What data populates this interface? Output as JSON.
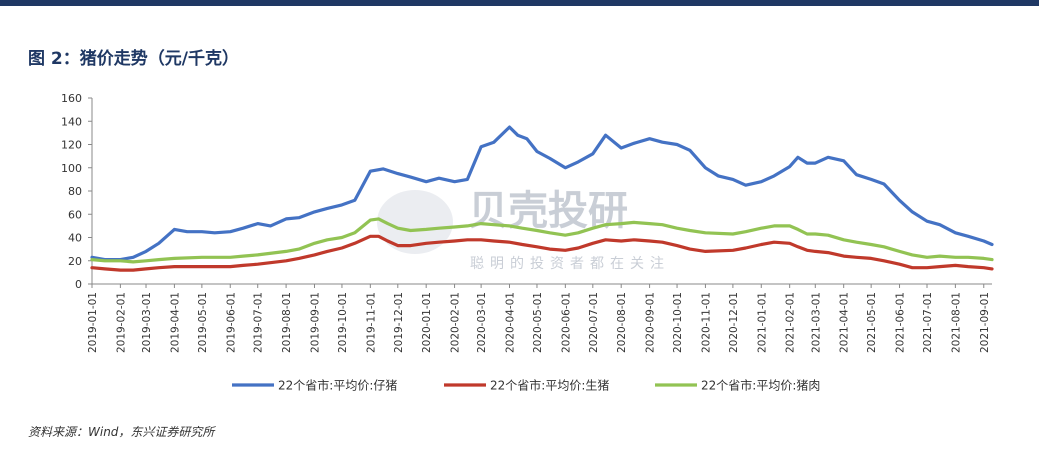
{
  "figure": {
    "title": "图 2：猪价走势（元/千克）",
    "source": "资料来源：Wind，东兴证券研究所"
  },
  "watermark": {
    "main": "贝壳投研",
    "sub": "聪明的投资者都在关注"
  },
  "colors": {
    "header_bar": "#1f3864",
    "title": "#1f3864",
    "axis": "#888888"
  },
  "chart_data": {
    "type": "line",
    "ylim": [
      0,
      160
    ],
    "yticks": [
      0,
      20,
      40,
      60,
      80,
      100,
      120,
      140,
      160
    ],
    "xlim": [
      "2019-01-01",
      "2021-09-10"
    ],
    "xticks": [
      "2019-01-01",
      "2019-02-01",
      "2019-03-01",
      "2019-04-01",
      "2019-05-01",
      "2019-06-01",
      "2019-07-01",
      "2019-08-01",
      "2019-09-01",
      "2019-10-01",
      "2019-11-01",
      "2019-12-01",
      "2020-01-01",
      "2020-02-01",
      "2020-03-01",
      "2020-04-01",
      "2020-05-01",
      "2020-06-01",
      "2020-07-01",
      "2020-08-01",
      "2020-09-01",
      "2020-10-01",
      "2020-11-01",
      "2020-12-01",
      "2021-01-01",
      "2021-02-01",
      "2021-03-01",
      "2021-04-01",
      "2021-05-01",
      "2021-06-01",
      "2021-07-01",
      "2021-08-01",
      "2021-09-01"
    ],
    "grid": false,
    "legend_position": "bottom",
    "series": [
      {
        "name": "22个省市:平均价:仔猪",
        "color": "#4472c4",
        "points": [
          [
            "2019-01-01",
            23
          ],
          [
            "2019-01-15",
            21
          ],
          [
            "2019-02-01",
            21
          ],
          [
            "2019-02-15",
            23
          ],
          [
            "2019-03-01",
            28
          ],
          [
            "2019-03-15",
            35
          ],
          [
            "2019-04-01",
            47
          ],
          [
            "2019-04-15",
            45
          ],
          [
            "2019-05-01",
            45
          ],
          [
            "2019-05-15",
            44
          ],
          [
            "2019-06-01",
            45
          ],
          [
            "2019-06-15",
            48
          ],
          [
            "2019-07-01",
            52
          ],
          [
            "2019-07-15",
            50
          ],
          [
            "2019-08-01",
            56
          ],
          [
            "2019-08-15",
            57
          ],
          [
            "2019-09-01",
            62
          ],
          [
            "2019-09-15",
            65
          ],
          [
            "2019-10-01",
            68
          ],
          [
            "2019-10-15",
            72
          ],
          [
            "2019-11-01",
            97
          ],
          [
            "2019-11-15",
            99
          ],
          [
            "2019-12-01",
            95
          ],
          [
            "2019-12-15",
            92
          ],
          [
            "2020-01-01",
            88
          ],
          [
            "2020-01-15",
            91
          ],
          [
            "2020-02-01",
            88
          ],
          [
            "2020-02-15",
            90
          ],
          [
            "2020-03-01",
            118
          ],
          [
            "2020-03-15",
            122
          ],
          [
            "2020-04-01",
            135
          ],
          [
            "2020-04-10",
            128
          ],
          [
            "2020-04-20",
            125
          ],
          [
            "2020-05-01",
            114
          ],
          [
            "2020-05-15",
            108
          ],
          [
            "2020-06-01",
            100
          ],
          [
            "2020-06-15",
            105
          ],
          [
            "2020-07-01",
            112
          ],
          [
            "2020-07-15",
            128
          ],
          [
            "2020-08-01",
            117
          ],
          [
            "2020-08-15",
            121
          ],
          [
            "2020-09-01",
            125
          ],
          [
            "2020-09-15",
            122
          ],
          [
            "2020-10-01",
            120
          ],
          [
            "2020-10-15",
            115
          ],
          [
            "2020-11-01",
            100
          ],
          [
            "2020-11-15",
            93
          ],
          [
            "2020-12-01",
            90
          ],
          [
            "2020-12-15",
            85
          ],
          [
            "2021-01-01",
            88
          ],
          [
            "2021-01-15",
            93
          ],
          [
            "2021-02-01",
            101
          ],
          [
            "2021-02-10",
            109
          ],
          [
            "2021-02-20",
            104
          ],
          [
            "2021-03-01",
            104
          ],
          [
            "2021-03-15",
            109
          ],
          [
            "2021-04-01",
            106
          ],
          [
            "2021-04-15",
            94
          ],
          [
            "2021-05-01",
            90
          ],
          [
            "2021-05-15",
            86
          ],
          [
            "2021-06-01",
            72
          ],
          [
            "2021-06-15",
            62
          ],
          [
            "2021-07-01",
            54
          ],
          [
            "2021-07-15",
            51
          ],
          [
            "2021-08-01",
            44
          ],
          [
            "2021-08-15",
            41
          ],
          [
            "2021-09-01",
            37
          ],
          [
            "2021-09-10",
            34
          ]
        ]
      },
      {
        "name": "22个省市:平均价:生猪",
        "color": "#c0392b",
        "points": [
          [
            "2019-01-01",
            14
          ],
          [
            "2019-01-15",
            13
          ],
          [
            "2019-02-01",
            12
          ],
          [
            "2019-02-15",
            12
          ],
          [
            "2019-03-01",
            13
          ],
          [
            "2019-03-15",
            14
          ],
          [
            "2019-04-01",
            15
          ],
          [
            "2019-05-01",
            15
          ],
          [
            "2019-06-01",
            15
          ],
          [
            "2019-06-15",
            16
          ],
          [
            "2019-07-01",
            17
          ],
          [
            "2019-08-01",
            20
          ],
          [
            "2019-08-15",
            22
          ],
          [
            "2019-09-01",
            25
          ],
          [
            "2019-09-15",
            28
          ],
          [
            "2019-10-01",
            31
          ],
          [
            "2019-10-15",
            35
          ],
          [
            "2019-11-01",
            41
          ],
          [
            "2019-11-10",
            41
          ],
          [
            "2019-11-20",
            37
          ],
          [
            "2019-12-01",
            33
          ],
          [
            "2019-12-15",
            33
          ],
          [
            "2020-01-01",
            35
          ],
          [
            "2020-01-15",
            36
          ],
          [
            "2020-02-01",
            37
          ],
          [
            "2020-02-15",
            38
          ],
          [
            "2020-03-01",
            38
          ],
          [
            "2020-03-15",
            37
          ],
          [
            "2020-04-01",
            36
          ],
          [
            "2020-04-15",
            34
          ],
          [
            "2020-05-01",
            32
          ],
          [
            "2020-05-15",
            30
          ],
          [
            "2020-06-01",
            29
          ],
          [
            "2020-06-15",
            31
          ],
          [
            "2020-07-01",
            35
          ],
          [
            "2020-07-15",
            38
          ],
          [
            "2020-08-01",
            37
          ],
          [
            "2020-08-15",
            38
          ],
          [
            "2020-09-01",
            37
          ],
          [
            "2020-09-15",
            36
          ],
          [
            "2020-10-01",
            33
          ],
          [
            "2020-10-15",
            30
          ],
          [
            "2020-11-01",
            28
          ],
          [
            "2020-12-01",
            29
          ],
          [
            "2020-12-15",
            31
          ],
          [
            "2021-01-01",
            34
          ],
          [
            "2021-01-15",
            36
          ],
          [
            "2021-02-01",
            35
          ],
          [
            "2021-02-10",
            32
          ],
          [
            "2021-02-20",
            29
          ],
          [
            "2021-03-01",
            28
          ],
          [
            "2021-03-15",
            27
          ],
          [
            "2021-04-01",
            24
          ],
          [
            "2021-04-15",
            23
          ],
          [
            "2021-05-01",
            22
          ],
          [
            "2021-05-15",
            20
          ],
          [
            "2021-06-01",
            17
          ],
          [
            "2021-06-15",
            14
          ],
          [
            "2021-07-01",
            14
          ],
          [
            "2021-07-15",
            15
          ],
          [
            "2021-08-01",
            16
          ],
          [
            "2021-08-15",
            15
          ],
          [
            "2021-09-01",
            14
          ],
          [
            "2021-09-10",
            13
          ]
        ]
      },
      {
        "name": "22个省市:平均价:猪肉",
        "color": "#92c353",
        "points": [
          [
            "2019-01-01",
            21
          ],
          [
            "2019-01-15",
            20
          ],
          [
            "2019-02-01",
            20
          ],
          [
            "2019-02-15",
            19
          ],
          [
            "2019-03-01",
            20
          ],
          [
            "2019-03-15",
            21
          ],
          [
            "2019-04-01",
            22
          ],
          [
            "2019-05-01",
            23
          ],
          [
            "2019-06-01",
            23
          ],
          [
            "2019-06-15",
            24
          ],
          [
            "2019-07-01",
            25
          ],
          [
            "2019-08-01",
            28
          ],
          [
            "2019-08-15",
            30
          ],
          [
            "2019-09-01",
            35
          ],
          [
            "2019-09-15",
            38
          ],
          [
            "2019-10-01",
            40
          ],
          [
            "2019-10-15",
            44
          ],
          [
            "2019-11-01",
            55
          ],
          [
            "2019-11-10",
            56
          ],
          [
            "2019-11-20",
            52
          ],
          [
            "2019-12-01",
            48
          ],
          [
            "2019-12-15",
            46
          ],
          [
            "2020-01-01",
            47
          ],
          [
            "2020-01-15",
            48
          ],
          [
            "2020-02-01",
            49
          ],
          [
            "2020-02-15",
            50
          ],
          [
            "2020-03-01",
            52
          ],
          [
            "2020-03-15",
            51
          ],
          [
            "2020-04-01",
            50
          ],
          [
            "2020-04-15",
            48
          ],
          [
            "2020-05-01",
            46
          ],
          [
            "2020-05-15",
            44
          ],
          [
            "2020-06-01",
            42
          ],
          [
            "2020-06-15",
            44
          ],
          [
            "2020-07-01",
            48
          ],
          [
            "2020-07-15",
            51
          ],
          [
            "2020-08-01",
            52
          ],
          [
            "2020-08-15",
            53
          ],
          [
            "2020-09-01",
            52
          ],
          [
            "2020-09-15",
            51
          ],
          [
            "2020-10-01",
            48
          ],
          [
            "2020-10-15",
            46
          ],
          [
            "2020-11-01",
            44
          ],
          [
            "2020-12-01",
            43
          ],
          [
            "2020-12-15",
            45
          ],
          [
            "2021-01-01",
            48
          ],
          [
            "2021-01-15",
            50
          ],
          [
            "2021-02-01",
            50
          ],
          [
            "2021-02-10",
            47
          ],
          [
            "2021-02-20",
            43
          ],
          [
            "2021-03-01",
            43
          ],
          [
            "2021-03-15",
            42
          ],
          [
            "2021-04-01",
            38
          ],
          [
            "2021-04-15",
            36
          ],
          [
            "2021-05-01",
            34
          ],
          [
            "2021-05-15",
            32
          ],
          [
            "2021-06-01",
            28
          ],
          [
            "2021-06-15",
            25
          ],
          [
            "2021-07-01",
            23
          ],
          [
            "2021-07-15",
            24
          ],
          [
            "2021-08-01",
            23
          ],
          [
            "2021-08-15",
            23
          ],
          [
            "2021-09-01",
            22
          ],
          [
            "2021-09-10",
            21
          ]
        ]
      }
    ]
  }
}
